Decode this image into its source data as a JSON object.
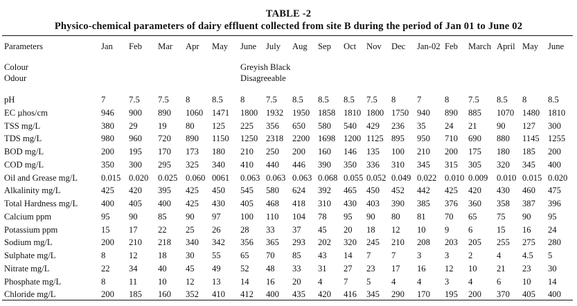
{
  "table": {
    "number": "TABLE -2",
    "title": "Physico-chemical parameters of dairy effluent collected from site B during the period of Jan 01 to June 02",
    "header_label": "Parameters",
    "months": [
      "Jan",
      "Feb",
      "Mar",
      "Apr",
      "May",
      "June",
      "July",
      "Aug",
      "Sep",
      "Oct",
      "Nov",
      "Dec",
      "Jan-02",
      "Feb",
      "March",
      "April",
      "May",
      "June"
    ],
    "qualitative": [
      {
        "parameter": "Colour",
        "value": "Greyish Black"
      },
      {
        "parameter": "Odour",
        "value": "Disagreeable"
      }
    ],
    "rows": [
      {
        "parameter": "pH",
        "values": [
          "7",
          "7.5",
          "7.5",
          "8",
          "8.5",
          "8",
          "7.5",
          "8.5",
          "8.5",
          "8.5",
          "7.5",
          "8",
          "7",
          "8",
          "7.5",
          "8.5",
          "8",
          "8.5"
        ]
      },
      {
        "parameter": "EC µhos/cm",
        "values": [
          "946",
          "900",
          "890",
          "1060",
          "1471",
          "1800",
          "1932",
          "1950",
          "1858",
          "1810",
          "1800",
          "1750",
          "940",
          "890",
          "885",
          "1070",
          "1480",
          "1810"
        ]
      },
      {
        "parameter": "TSS mg/L",
        "values": [
          "380",
          "29",
          "19",
          "80",
          "125",
          "225",
          "356",
          "650",
          "580",
          "540",
          "429",
          "236",
          "35",
          "24",
          "21",
          "90",
          "127",
          "300"
        ]
      },
      {
        "parameter": "TDS mg/L",
        "values": [
          "980",
          "960",
          "720",
          "890",
          "1150",
          "1250",
          "2318",
          "2200",
          "1698",
          "1200",
          "1125",
          "895",
          "950",
          "710",
          "690",
          "880",
          "1145",
          "1255"
        ]
      },
      {
        "parameter": "BOD mg/L",
        "values": [
          "200",
          "195",
          "170",
          "173",
          "180",
          "210",
          "250",
          "200",
          "160",
          "146",
          "135",
          "100",
          "210",
          "200",
          "175",
          "180",
          "185",
          "200"
        ]
      },
      {
        "parameter": "COD mg/L",
        "values": [
          "350",
          "300",
          "295",
          "325",
          "340",
          "410",
          "440",
          "446",
          "390",
          "350",
          "336",
          "310",
          "345",
          "315",
          "305",
          "320",
          "345",
          "400"
        ]
      },
      {
        "parameter": "Oil and Grease mg/L",
        "values": [
          "0.015",
          "0.020",
          "0.025",
          "0.060",
          "0061",
          "0.063",
          "0.063",
          "0.063",
          "0.068",
          "0.055",
          "0.052",
          "0.049",
          "0.022",
          "0.010",
          "0.009",
          "0.010",
          "0.015",
          "0.020"
        ]
      },
      {
        "parameter": "Alkalinity mg/L",
        "values": [
          "425",
          "420",
          "395",
          "425",
          "450",
          "545",
          "580",
          "624",
          "392",
          "465",
          "450",
          "452",
          "442",
          "425",
          "420",
          "430",
          "460",
          "475"
        ]
      },
      {
        "parameter": "Total Hardness mg/L",
        "values": [
          "400",
          "405",
          "400",
          "425",
          "430",
          "405",
          "468",
          "418",
          "310",
          "430",
          "403",
          "390",
          "385",
          "376",
          "360",
          "358",
          "387",
          "396"
        ]
      },
      {
        "parameter": "Calcium ppm",
        "values": [
          "95",
          "90",
          "85",
          "90",
          "97",
          "100",
          "110",
          "104",
          "78",
          "95",
          "90",
          "80",
          "81",
          "70",
          "65",
          "75",
          "90",
          "95"
        ]
      },
      {
        "parameter": "Potassium ppm",
        "values": [
          "15",
          "17",
          "22",
          "25",
          "26",
          "28",
          "33",
          "37",
          "45",
          "20",
          "18",
          "12",
          "10",
          "9",
          "6",
          "15",
          "16",
          "24"
        ]
      },
      {
        "parameter": "Sodium mg/L",
        "values": [
          "200",
          "210",
          "218",
          "340",
          "342",
          "356",
          "365",
          "293",
          "202",
          "320",
          "245",
          "210",
          "208",
          "203",
          "205",
          "255",
          "275",
          "280"
        ]
      },
      {
        "parameter": "Sulphate mg/L",
        "values": [
          "8",
          "12",
          "18",
          "30",
          "55",
          "65",
          "70",
          "85",
          "43",
          "14",
          "7",
          "7",
          "3",
          "3",
          "2",
          "4",
          "4.5",
          "5"
        ]
      },
      {
        "parameter": "Nitrate mg/L",
        "values": [
          "22",
          "34",
          "40",
          "45",
          "49",
          "52",
          "48",
          "33",
          "31",
          "27",
          "23",
          "17",
          "16",
          "12",
          "10",
          "21",
          "23",
          "30"
        ]
      },
      {
        "parameter": "Phosphate mg/L",
        "values": [
          "8",
          "11",
          "10",
          "12",
          "13",
          "14",
          "16",
          "20",
          "4",
          "7",
          "5",
          "4",
          "4",
          "3",
          "4",
          "6",
          "10",
          "14"
        ]
      },
      {
        "parameter": "Chloride mg/L",
        "values": [
          "200",
          "185",
          "160",
          "352",
          "410",
          "412",
          "400",
          "435",
          "420",
          "416",
          "345",
          "290",
          "170",
          "195",
          "200",
          "370",
          "405",
          "400"
        ]
      }
    ]
  }
}
